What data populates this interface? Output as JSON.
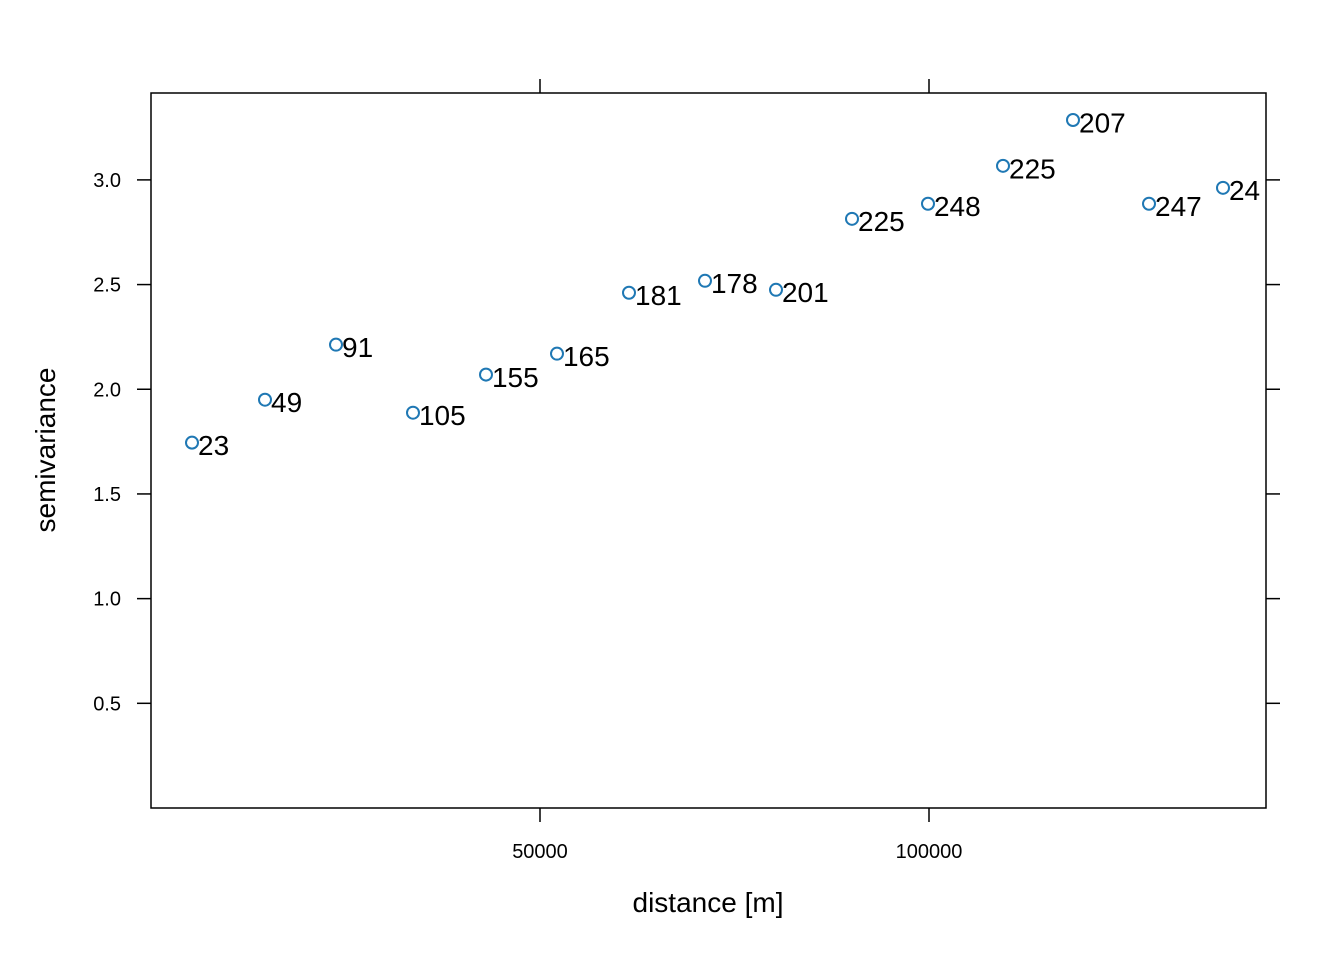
{
  "chart_data": {
    "type": "scatter",
    "xlabel": "distance [m]",
    "ylabel": "semivariance",
    "x": [
      5270,
      14653,
      23779,
      33676,
      43059,
      52185,
      61440,
      71208,
      80334,
      90103,
      99871,
      109512,
      118509,
      128278,
      137789
    ],
    "values": [
      1.745,
      1.95,
      2.213,
      1.888,
      2.07,
      2.17,
      2.461,
      2.518,
      2.475,
      2.814,
      2.886,
      3.067,
      3.286,
      2.886,
      2.962
    ],
    "point_labels": [
      "23",
      "49",
      "91",
      "105",
      "155",
      "165",
      "181",
      "178",
      "201",
      "225",
      "248",
      "225",
      "207",
      "247",
      "24"
    ],
    "color": "#1f78b4",
    "xlim": [
      0,
      143316
    ],
    "xticks": [
      50000,
      100000
    ],
    "ylim": [
      0,
      3.415
    ],
    "yticks": [
      {
        "value": 0.5,
        "label": "0.5"
      },
      {
        "value": 1.0,
        "label": "1.0"
      },
      {
        "value": 1.5,
        "label": "1.5"
      },
      {
        "value": 2.0,
        "label": "2.0"
      },
      {
        "value": 2.5,
        "label": "2.5"
      },
      {
        "value": 3.0,
        "label": "3.0"
      }
    ]
  }
}
